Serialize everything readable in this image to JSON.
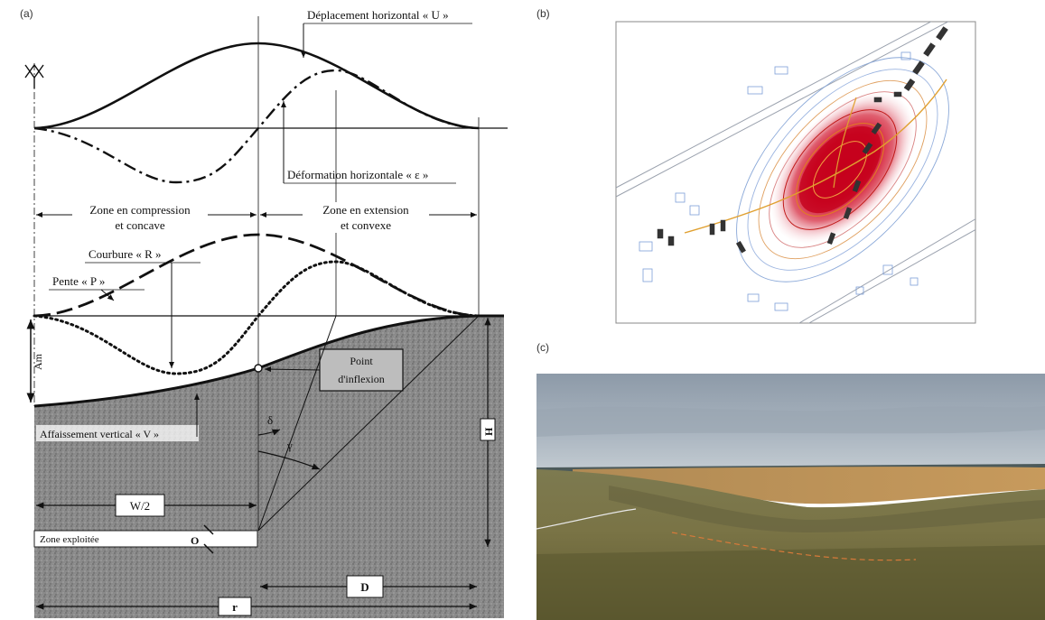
{
  "panels": {
    "a": {
      "label": "(a)"
    },
    "b": {
      "label": "(b)"
    },
    "c": {
      "label": "(c)"
    }
  },
  "diagram_a": {
    "top_labels": {
      "horizontal_displacement": "Déplacement horizontal « U »",
      "horizontal_deformation": "Déformation horizontale « ε »"
    },
    "zones": {
      "compression_line1": "Zone en compression",
      "compression_line2": "et concave",
      "extension_line1": "Zone en extension",
      "extension_line2": "et convexe"
    },
    "curve_labels": {
      "curvature": "Courbure « R »",
      "slope": "Pente « P »"
    },
    "section_labels": {
      "inflection_line1": "Point",
      "inflection_line2": "d'inflexion",
      "vertical_subsidence": "Affaissement vertical « V »",
      "am": "Am",
      "delta": "δ",
      "gamma": "γ",
      "h": "H",
      "w_half": "W/2",
      "mined_zone": "Zone exploitée",
      "o": "O",
      "d": "D",
      "r": "r"
    }
  }
}
